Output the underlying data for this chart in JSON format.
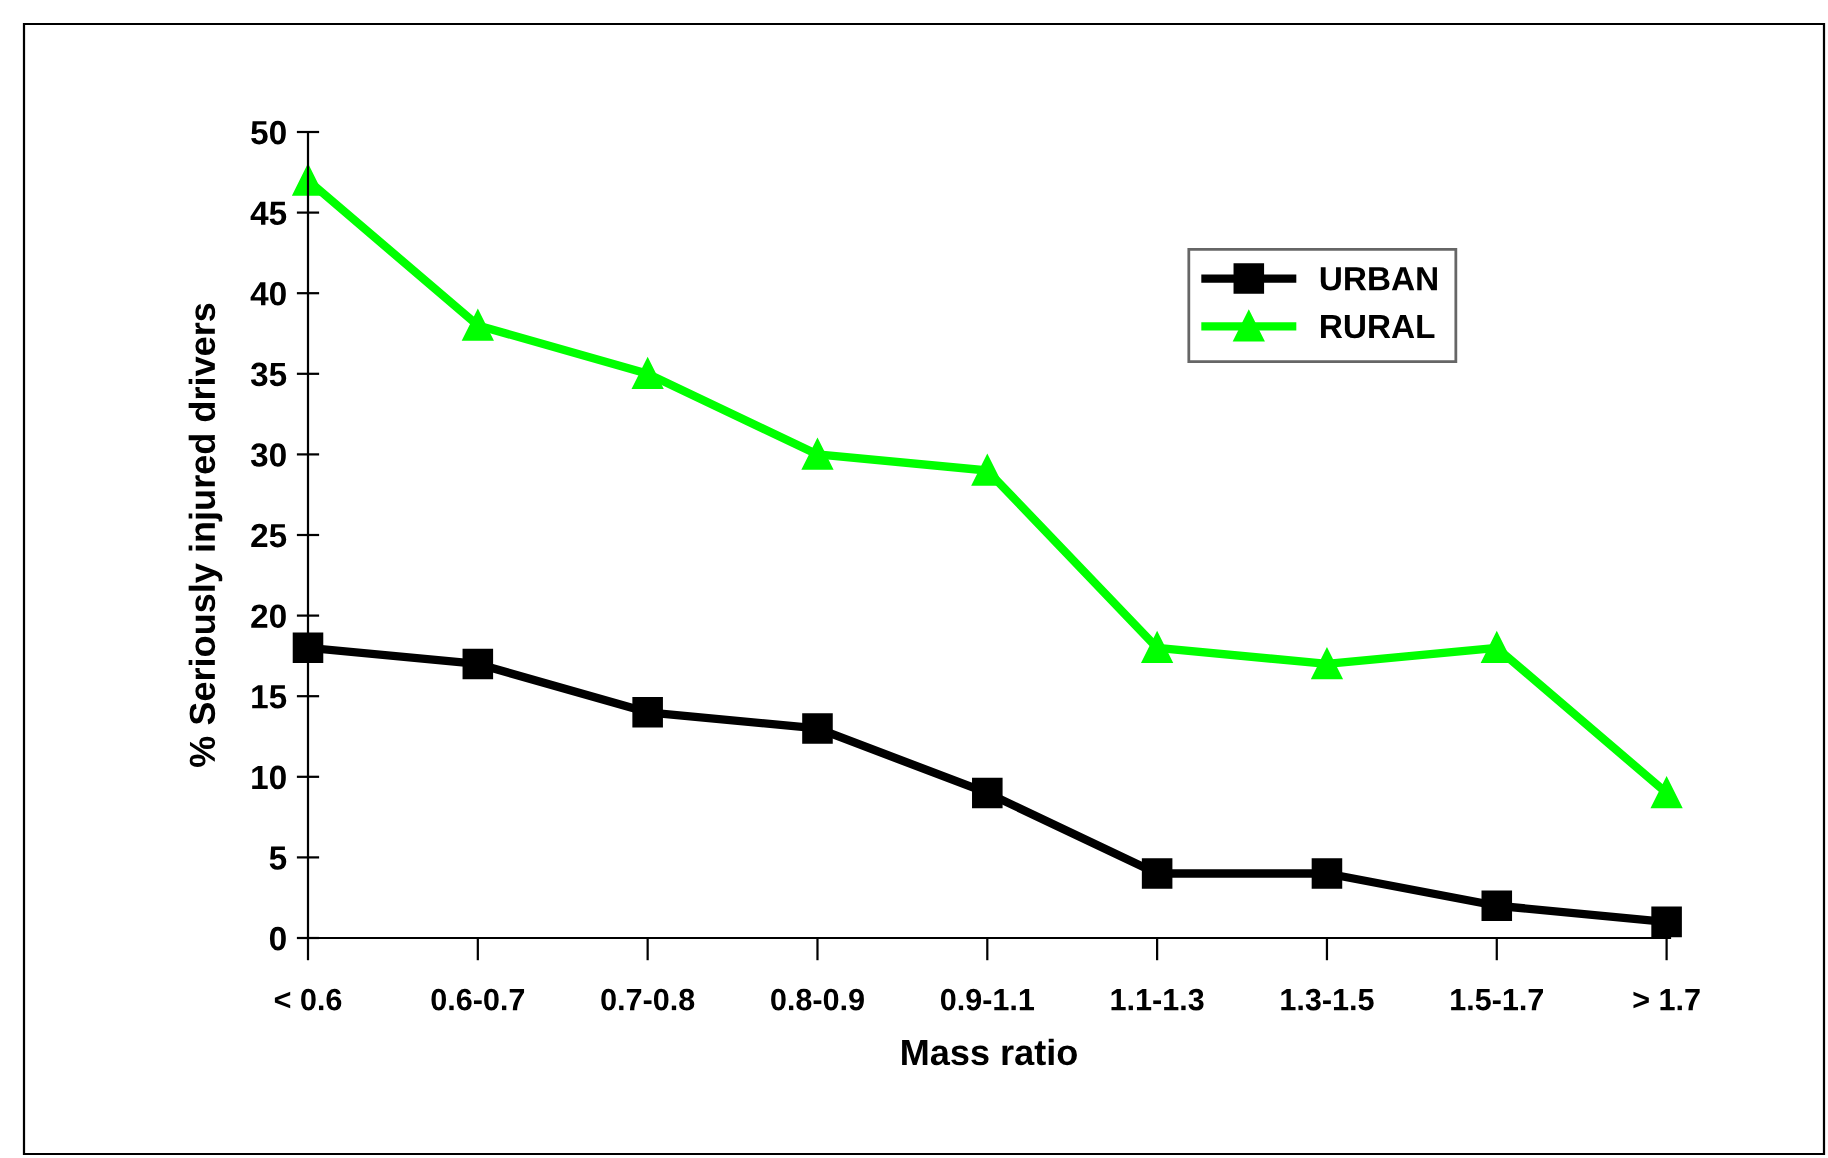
{
  "chart_data": {
    "type": "line",
    "xlabel": "Mass ratio",
    "ylabel": "% Seriously injured drivers",
    "categories": [
      "< 0.6",
      "0.6-0.7",
      "0.7-0.8",
      "0.8-0.9",
      "0.9-1.1",
      "1.1-1.3",
      "1.3-1.5",
      "1.5-1.7",
      "> 1.7"
    ],
    "series": [
      {
        "name": "URBAN",
        "color": "#000000",
        "marker": "square",
        "values": [
          18,
          17,
          14,
          13,
          9,
          4,
          4,
          2,
          1
        ]
      },
      {
        "name": "RURAL",
        "color": "#00ff00",
        "marker": "triangle",
        "values": [
          47,
          38,
          35,
          30,
          29,
          18,
          17,
          18,
          9
        ]
      }
    ],
    "ylim": [
      0,
      50
    ],
    "yticks": [
      0,
      5,
      10,
      15,
      20,
      25,
      30,
      35,
      40,
      45,
      50
    ],
    "grid": false,
    "legend": "top right",
    "line_style": "solid"
  }
}
